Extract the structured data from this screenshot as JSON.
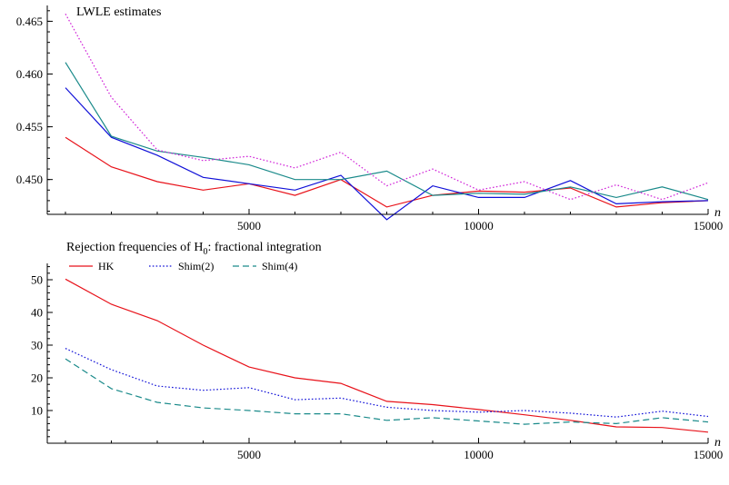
{
  "chart_data": [
    {
      "type": "line",
      "title": "LWLE estimates",
      "xlabel": "n",
      "ylabel": "",
      "x": [
        1000,
        2000,
        3000,
        4000,
        5000,
        6000,
        7000,
        8000,
        9000,
        10000,
        11000,
        12000,
        13000,
        14000,
        15000
      ],
      "xlim": [
        1000,
        15000
      ],
      "ylim": [
        0.4467,
        0.4665
      ],
      "xticks": [
        "5000",
        "10000",
        "15000"
      ],
      "xtick_values": [
        5000,
        10000,
        15000
      ],
      "yticks": [
        "0.450",
        "0.455",
        "0.460",
        "0.465"
      ],
      "ytick_values": [
        0.45,
        0.455,
        0.46,
        0.465
      ],
      "series": [
        {
          "color": "#e8121a",
          "dash": "solid",
          "values": [
            0.454,
            0.4512,
            0.4498,
            0.449,
            0.4496,
            0.4485,
            0.45,
            0.4474,
            0.4485,
            0.4489,
            0.4488,
            0.4492,
            0.4474,
            0.4478,
            0.448
          ]
        },
        {
          "color": "#1010d8",
          "dash": "solid",
          "values": [
            0.4587,
            0.454,
            0.4523,
            0.4502,
            0.4496,
            0.449,
            0.4504,
            0.4462,
            0.4494,
            0.4483,
            0.4483,
            0.4499,
            0.4477,
            0.4479,
            0.448
          ]
        },
        {
          "color": "#1a8a8a",
          "dash": "solid",
          "values": [
            0.4611,
            0.4541,
            0.4527,
            0.4521,
            0.4514,
            0.45,
            0.45,
            0.4508,
            0.4485,
            0.4487,
            0.4486,
            0.4493,
            0.4483,
            0.4493,
            0.4481
          ]
        },
        {
          "color": "#d020d8",
          "dash": "dotted",
          "values": [
            0.4657,
            0.4578,
            0.4528,
            0.4518,
            0.4522,
            0.4511,
            0.4526,
            0.4494,
            0.451,
            0.449,
            0.4498,
            0.4481,
            0.4495,
            0.4481,
            0.4497
          ]
        }
      ]
    },
    {
      "type": "line",
      "title": "Rejection frequencies of H",
      "title_subscript": "0",
      "title_rest": ": fractional integration",
      "xlabel": "n",
      "ylabel": "",
      "x": [
        1000,
        2000,
        3000,
        4000,
        5000,
        6000,
        7000,
        8000,
        9000,
        10000,
        11000,
        12000,
        13000,
        14000,
        15000
      ],
      "xlim": [
        1000,
        15000
      ],
      "ylim": [
        0,
        55
      ],
      "xticks": [
        "5000",
        "10000",
        "15000"
      ],
      "xtick_values": [
        5000,
        10000,
        15000
      ],
      "yticks": [
        "10",
        "20",
        "30",
        "40",
        "50"
      ],
      "ytick_values": [
        10,
        20,
        30,
        40,
        50
      ],
      "legend_position": "top-left",
      "series": [
        {
          "name": "HK",
          "color": "#e8121a",
          "dash": "solid",
          "values": [
            50.2,
            42.5,
            37.5,
            30.0,
            23.3,
            20.0,
            18.3,
            12.8,
            11.8,
            10.3,
            8.7,
            7.0,
            5.0,
            4.8,
            3.4
          ]
        },
        {
          "name": "Shim(2)",
          "color": "#1010d8",
          "dash": "dotted",
          "values": [
            29.0,
            22.5,
            17.5,
            16.2,
            17.0,
            13.3,
            13.8,
            11.0,
            10.0,
            9.5,
            10.0,
            9.2,
            8.0,
            9.8,
            8.2
          ]
        },
        {
          "name": "Shim(4)",
          "color": "#1a8a8a",
          "dash": "dashed",
          "values": [
            25.8,
            16.7,
            12.5,
            10.8,
            10.0,
            9.0,
            9.0,
            7.0,
            7.8,
            6.8,
            5.8,
            6.5,
            6.0,
            7.8,
            6.5
          ]
        }
      ]
    }
  ]
}
